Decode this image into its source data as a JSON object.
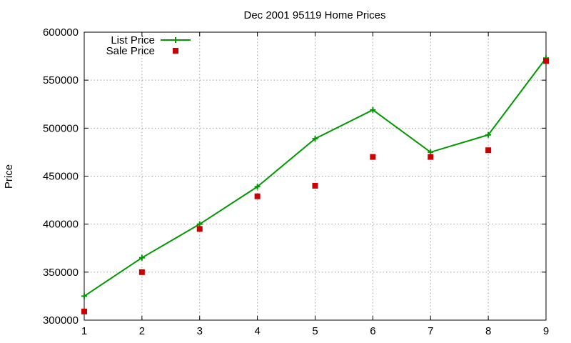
{
  "chart_data": {
    "type": "line",
    "title": "Dec 2001 95119 Home Prices",
    "xlabel": "",
    "ylabel": "Price",
    "x": [
      1,
      2,
      3,
      4,
      5,
      6,
      7,
      8,
      9
    ],
    "xlim": [
      1,
      9
    ],
    "ylim": [
      300000,
      600000
    ],
    "xticks": [
      1,
      2,
      3,
      4,
      5,
      6,
      7,
      8,
      9
    ],
    "yticks": [
      300000,
      350000,
      400000,
      450000,
      500000,
      550000,
      600000
    ],
    "grid": true,
    "legend_position": "top-left",
    "series": [
      {
        "name": "List Price",
        "style": "line-with-plus-markers",
        "color": "#009900",
        "values": [
          325000,
          365000,
          400000,
          439000,
          489000,
          519000,
          475000,
          493000,
          573000
        ]
      },
      {
        "name": "Sale Price",
        "style": "square-markers",
        "color": "#cc0000",
        "values": [
          309000,
          350000,
          395000,
          429000,
          440000,
          470000,
          470000,
          477000,
          570000
        ]
      }
    ]
  }
}
